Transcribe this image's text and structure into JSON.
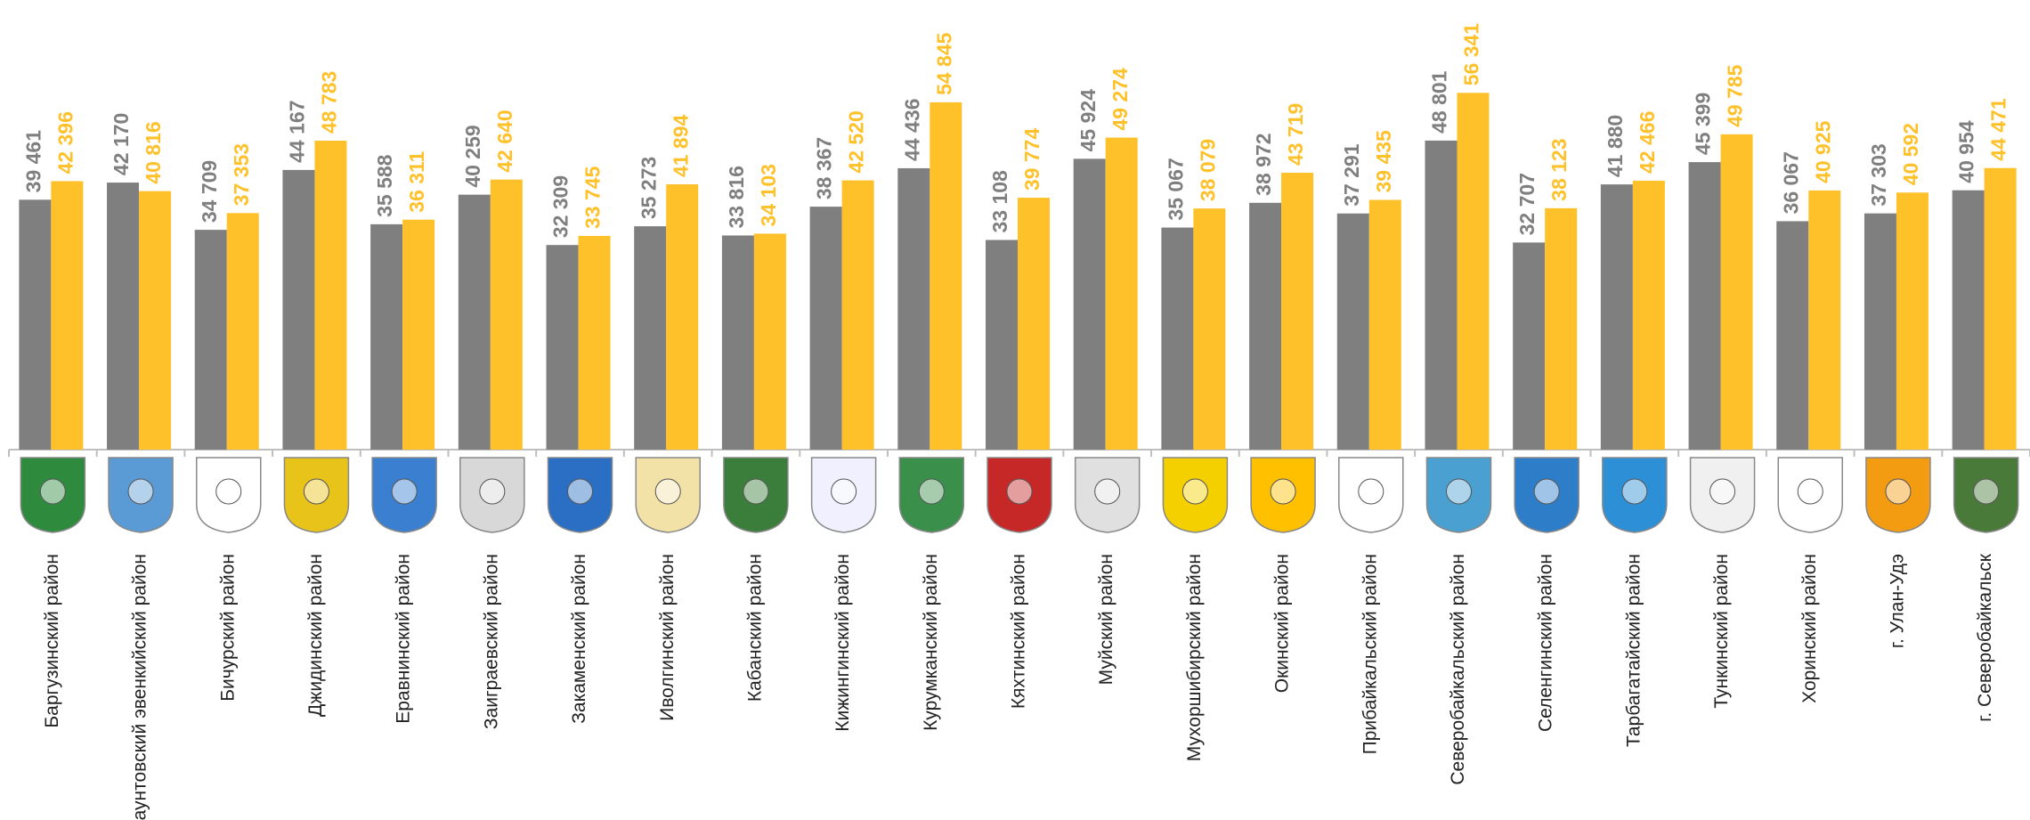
{
  "chart_data": {
    "type": "bar",
    "categories": [
      "Баргузинский район",
      "Баунтовский эвенкийский район",
      "Бичурский район",
      "Джидинский район",
      "Еравнинский район",
      "Заиграевский район",
      "Закаменский район",
      "Иволгинский район",
      "Кабанский район",
      "Кижингинский район",
      "Курумканский район",
      "Кяхтинский район",
      "Муйский район",
      "Мухоршибирский район",
      "Окинский район",
      "Прибайкальский район",
      "Северобайкальский район",
      "Селенгинский район",
      "Тарбагатайский район",
      "Тункинский район",
      "Хоринский район",
      "г. Улан-Удэ",
      "г. Северобайкальск"
    ],
    "series": [
      {
        "color": "#7f7f7f",
        "values": [
          39461,
          42170,
          34709,
          44167,
          35588,
          40259,
          32309,
          35273,
          33816,
          38367,
          44436,
          33108,
          45924,
          35067,
          38972,
          37291,
          48801,
          32707,
          41880,
          45399,
          36067,
          37303,
          40954
        ],
        "value_labels": [
          "39 461",
          "42 170",
          "34 709",
          "44 167",
          "35 588",
          "40 259",
          "32 309",
          "35 273",
          "33 816",
          "38 367",
          "44 436",
          "33 108",
          "45 924",
          "35 067",
          "38 972",
          "37 291",
          "48 801",
          "32 707",
          "41 880",
          "45 399",
          "36 067",
          "37 303",
          "40 954"
        ]
      },
      {
        "color": "#ffc12a",
        "values": [
          42396,
          40816,
          37353,
          48783,
          36311,
          42640,
          33745,
          41894,
          34103,
          42520,
          54845,
          39774,
          49274,
          38079,
          43719,
          39435,
          56341,
          38123,
          42466,
          49785,
          40925,
          40592,
          44471
        ],
        "value_labels": [
          "42 396",
          "40 816",
          "37 353",
          "48 783",
          "36 311",
          "42 640",
          "33 745",
          "41 894",
          "34 103",
          "42 520",
          "54 845",
          "39 774",
          "49 274",
          "38 079",
          "43 719",
          "39 435",
          "56 341",
          "38 123",
          "42 466",
          "49 785",
          "40 925",
          "40 592",
          "44 471"
        ]
      }
    ],
    "ylim": [
      0,
      71000
    ]
  }
}
